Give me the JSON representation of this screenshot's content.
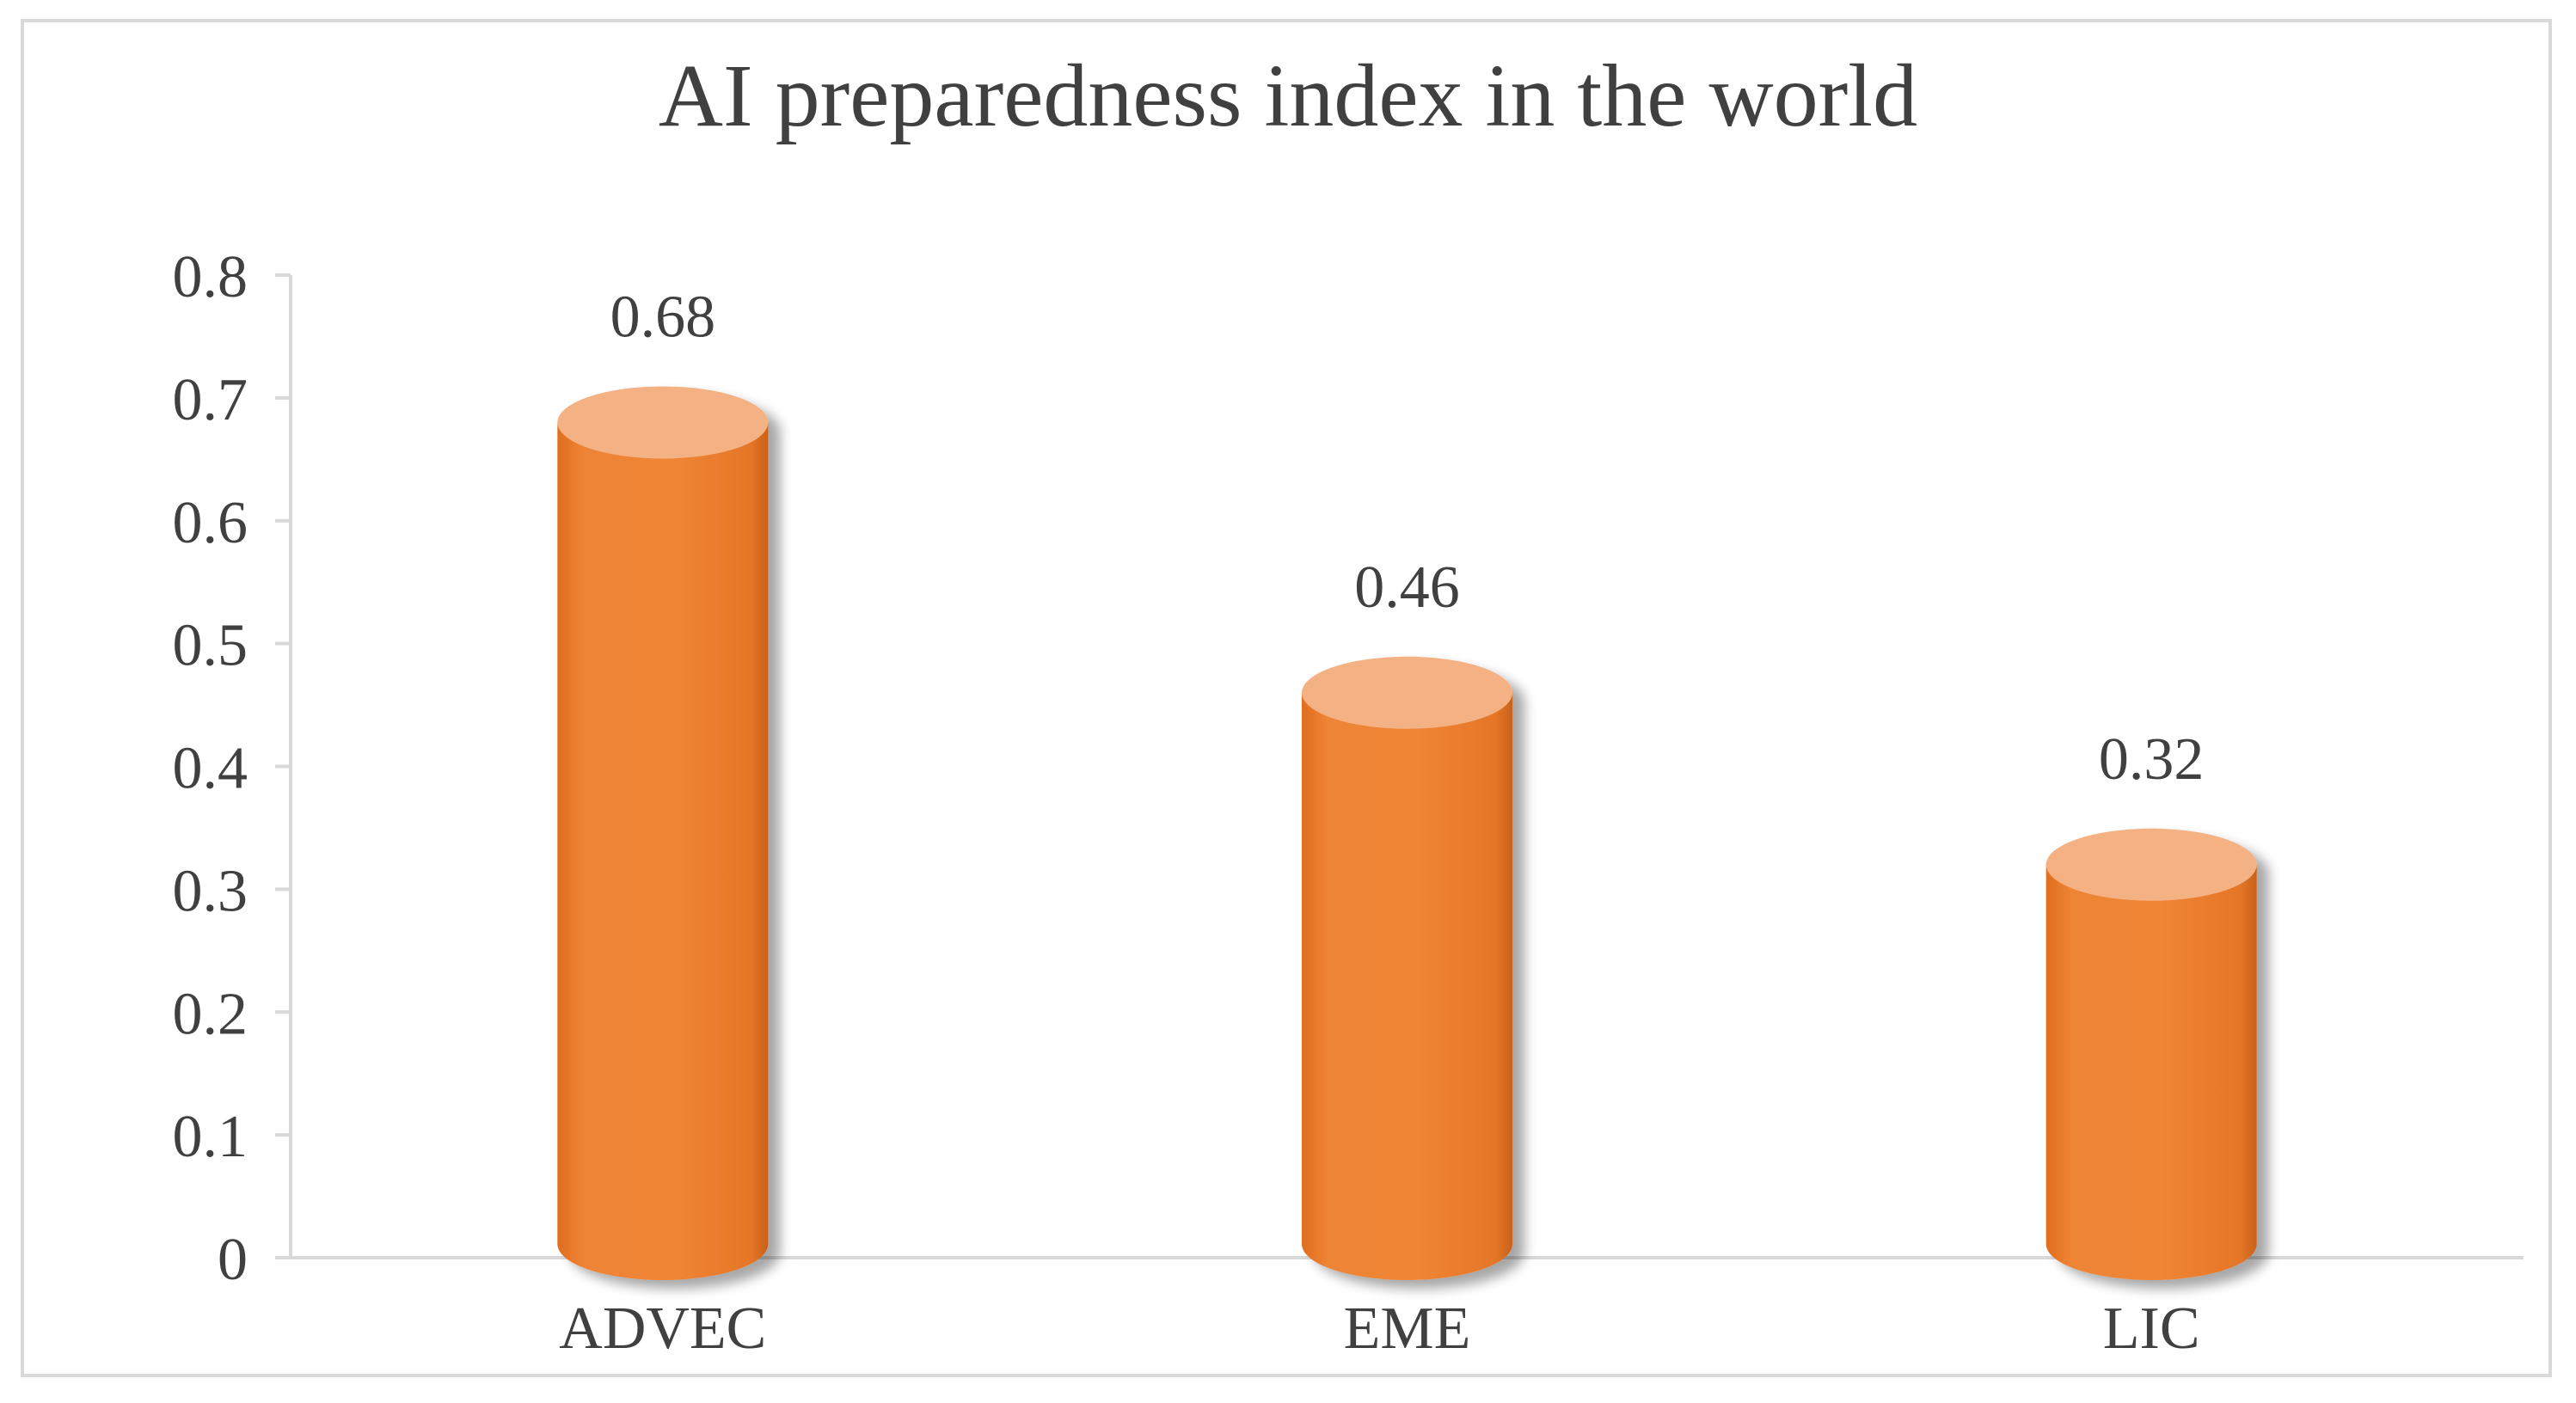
{
  "chart_data": {
    "type": "bar",
    "title": "AI preparedness index in the world",
    "categories": [
      "ADVEC",
      "EME",
      "LIC"
    ],
    "values": [
      0.68,
      0.46,
      0.32
    ],
    "data_labels": [
      "0.68",
      "0.46",
      "0.32"
    ],
    "ylim": [
      0,
      0.8
    ],
    "yticks": [
      0,
      0.1,
      0.2,
      0.3,
      0.4,
      0.5,
      0.6,
      0.7,
      0.8
    ],
    "ytick_labels": [
      "0",
      "0.1",
      "0.2",
      "0.3",
      "0.4",
      "0.5",
      "0.6",
      "0.7",
      "0.8"
    ],
    "xlabel": "",
    "ylabel": "",
    "grid": false,
    "legend": "none",
    "bar_style": "3d-cylinder",
    "colors": {
      "bar_body": "#ed7d31",
      "bar_top": "#f4b183",
      "axis": "#d9d9d9",
      "text": "#404040"
    }
  }
}
